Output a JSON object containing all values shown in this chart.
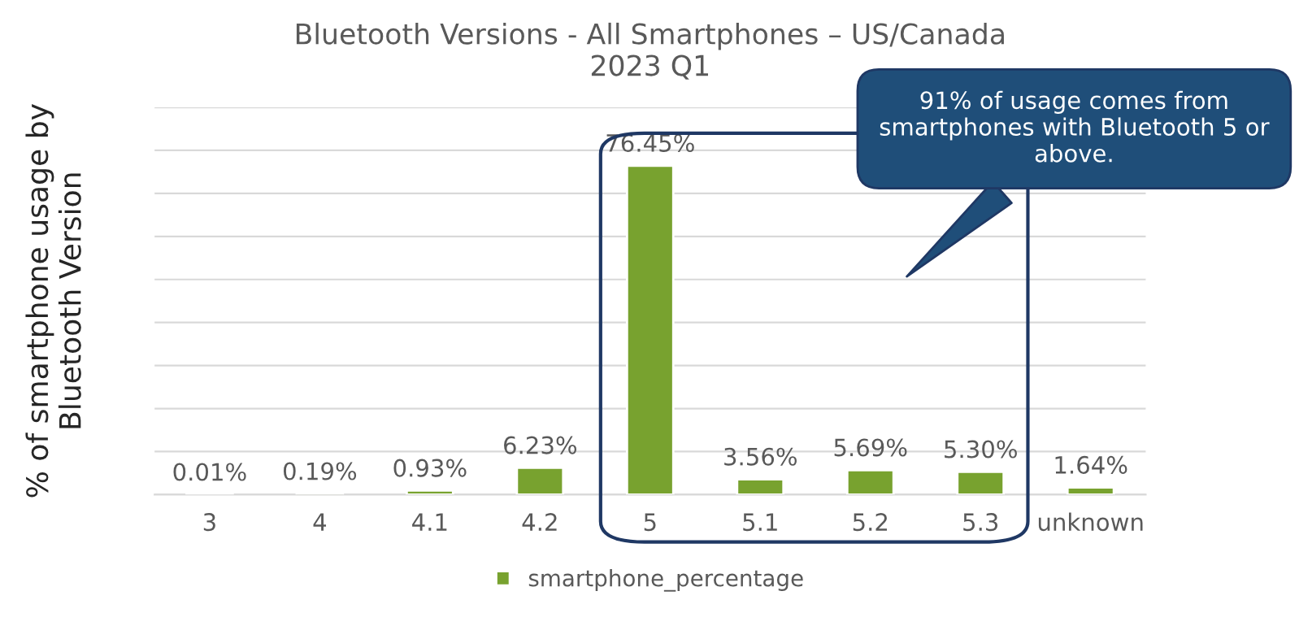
{
  "chart_data": {
    "type": "bar",
    "title": "Bluetooth Versions - All Smartphones – US/Canada\n2023 Q1",
    "ylabel": "% of smartphone usage by\nBluetooth Version",
    "categories": [
      "3",
      "4",
      "4.1",
      "4.2",
      "5",
      "5.1",
      "5.2",
      "5.3",
      "unknown"
    ],
    "series": [
      {
        "name": "smartphone_percentage",
        "color": "#78a22f",
        "values": [
          0.01,
          0.19,
          0.93,
          6.23,
          76.45,
          3.56,
          5.69,
          5.3,
          1.64
        ],
        "value_labels": [
          "0.01%",
          "0.19%",
          "0.93%",
          "6.23%",
          "76.45%",
          "3.56%",
          "5.69%",
          "5.30%",
          "1.64%"
        ]
      }
    ],
    "ylim": [
      0,
      90
    ],
    "yticks": [
      {
        "value": 0,
        "label": null
      },
      {
        "value": 10,
        "label": null
      },
      {
        "value": 20,
        "label": null
      },
      {
        "value": 30,
        "label": null
      },
      {
        "value": 40,
        "label": null
      },
      {
        "value": 50,
        "label": null
      },
      {
        "value": 60,
        "label": null
      },
      {
        "value": 70,
        "label": null
      },
      {
        "value": 80,
        "label": null
      },
      {
        "value": 90,
        "label": null
      }
    ],
    "tick_labels": "x",
    "grid": "y",
    "legend": "bottom",
    "annotations": [
      "91% of usage comes from smartphones with Bluetooth 5 or above."
    ]
  }
}
